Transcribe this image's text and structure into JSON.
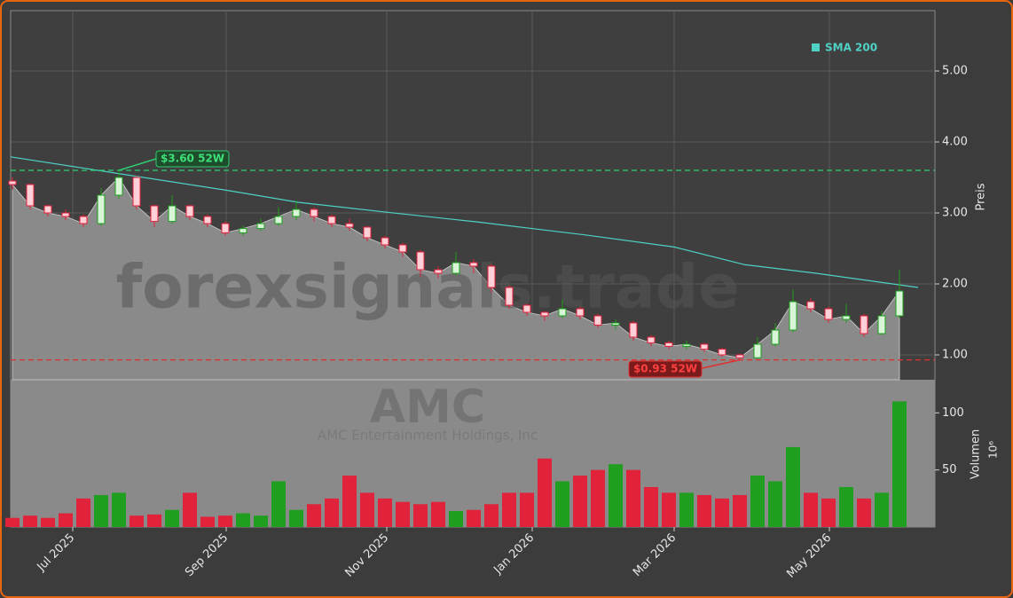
{
  "chart_data": [
    {
      "type": "candlestick",
      "title": "AMC",
      "subtitle": "AMC Entertainment Holdings, Inc",
      "watermark": "forexsignals.trade",
      "ylabel": "Preis",
      "x": [
        0,
        1,
        2,
        3,
        4,
        5,
        6,
        7,
        8,
        9,
        10,
        11,
        12,
        13,
        14,
        15,
        16,
        17,
        18,
        19,
        20,
        21,
        22,
        23,
        24,
        25,
        26,
        27,
        28,
        29,
        30,
        31,
        32,
        33,
        34,
        35,
        36,
        37,
        38,
        39,
        40,
        41,
        42,
        43,
        44,
        45,
        46,
        47,
        48,
        49,
        50
      ],
      "open": [
        3.45,
        3.4,
        3.1,
        3.0,
        2.95,
        2.85,
        3.25,
        3.5,
        3.1,
        2.88,
        3.1,
        2.95,
        2.85,
        2.72,
        2.78,
        2.85,
        2.95,
        3.05,
        2.95,
        2.85,
        2.8,
        2.65,
        2.55,
        2.45,
        2.2,
        2.15,
        2.3,
        2.25,
        1.95,
        1.7,
        1.6,
        1.55,
        1.65,
        1.55,
        1.42,
        1.45,
        1.25,
        1.17,
        1.12,
        1.15,
        1.08,
        1.0,
        0.96,
        1.15,
        1.35,
        1.75,
        1.65,
        1.5,
        1.55,
        1.3,
        1.55
      ],
      "high": [
        3.5,
        3.42,
        3.12,
        3.05,
        2.98,
        3.35,
        3.6,
        3.52,
        3.12,
        3.25,
        3.12,
        2.98,
        2.88,
        2.82,
        2.92,
        3.08,
        3.18,
        3.08,
        2.98,
        2.92,
        2.82,
        2.68,
        2.58,
        2.48,
        2.25,
        2.45,
        2.35,
        2.28,
        1.98,
        1.72,
        1.62,
        1.78,
        1.68,
        1.58,
        1.5,
        1.48,
        1.28,
        1.2,
        1.2,
        1.17,
        1.1,
        1.02,
        1.25,
        1.45,
        1.92,
        1.8,
        1.68,
        1.72,
        1.58,
        1.62,
        2.2
      ],
      "low": [
        3.33,
        3.05,
        2.95,
        2.9,
        2.8,
        2.82,
        3.2,
        3.05,
        2.8,
        2.85,
        2.9,
        2.8,
        2.68,
        2.68,
        2.75,
        2.82,
        2.9,
        2.88,
        2.8,
        2.75,
        2.6,
        2.5,
        2.38,
        2.1,
        2.08,
        2.12,
        2.15,
        1.88,
        1.65,
        1.55,
        1.48,
        1.52,
        1.5,
        1.38,
        1.36,
        1.2,
        1.12,
        1.08,
        1.08,
        1.04,
        0.97,
        0.93,
        0.95,
        1.12,
        1.32,
        1.6,
        1.45,
        1.45,
        1.25,
        1.28,
        1.52
      ],
      "close": [
        3.4,
        3.1,
        3.0,
        2.95,
        2.85,
        3.25,
        3.5,
        3.1,
        2.88,
        3.1,
        2.95,
        2.85,
        2.72,
        2.78,
        2.85,
        2.95,
        3.05,
        2.95,
        2.85,
        2.8,
        2.65,
        2.55,
        2.45,
        2.2,
        2.15,
        2.3,
        2.25,
        1.95,
        1.7,
        1.6,
        1.55,
        1.65,
        1.55,
        1.42,
        1.45,
        1.25,
        1.17,
        1.12,
        1.15,
        1.08,
        1.0,
        0.96,
        1.15,
        1.35,
        1.75,
        1.65,
        1.5,
        1.55,
        1.3,
        1.55,
        1.9
      ],
      "up_color": "#1f9e1f",
      "down_color": "#e0223a",
      "area_color": "#8a8a8a",
      "sma": {
        "name": "SMA 200",
        "color": "#4fd1c5",
        "x": [
          -0.1,
          12.05,
          16.1,
          21.1,
          26.3,
          32.3,
          37.3,
          41.3,
          45.3,
          51.05
        ],
        "values": [
          3.79,
          3.32,
          3.15,
          3.01,
          2.87,
          2.69,
          2.52,
          2.27,
          2.15,
          1.95
        ]
      },
      "legend": "upper right",
      "hlines": [
        {
          "value": 3.6,
          "label": "$3.60 52W",
          "color": "#2ecc71"
        },
        {
          "value": 0.93,
          "label": "$0.93 52W",
          "color": "#e0302e"
        }
      ],
      "xlim": [
        -0.1,
        52
      ],
      "xticks": [
        {
          "value": 3.4,
          "label": "Jul 2025"
        },
        {
          "value": 12.05,
          "label": "Sep 2025"
        },
        {
          "value": 21.1,
          "label": "Nov 2025"
        },
        {
          "value": 29.3,
          "label": "Jan 2026"
        },
        {
          "value": 37.3,
          "label": "Mar 2026"
        },
        {
          "value": 46.05,
          "label": "May 2026"
        }
      ],
      "ylim": [
        0.65,
        5.85
      ],
      "yticks": [
        {
          "value": 1,
          "label": "1.00"
        },
        {
          "value": 2,
          "label": "2.00"
        },
        {
          "value": 3,
          "label": "3.00"
        },
        {
          "value": 4,
          "label": "4.00"
        },
        {
          "value": 5,
          "label": "5.00"
        }
      ],
      "grid": true
    },
    {
      "type": "bar",
      "ylabel": "Volumen",
      "yunit": "10⁶",
      "x": [
        0,
        1,
        2,
        3,
        4,
        5,
        6,
        7,
        8,
        9,
        10,
        11,
        12,
        13,
        14,
        15,
        16,
        17,
        18,
        19,
        20,
        21,
        22,
        23,
        24,
        25,
        26,
        27,
        28,
        29,
        30,
        31,
        32,
        33,
        34,
        35,
        36,
        37,
        38,
        39,
        40,
        41,
        42,
        43,
        44,
        45,
        46,
        47,
        48,
        49,
        50
      ],
      "values": [
        8,
        10,
        8,
        12,
        25,
        28,
        30,
        10,
        11,
        15,
        30,
        9,
        10,
        12,
        10,
        40,
        15,
        20,
        25,
        45,
        30,
        25,
        22,
        20,
        22,
        14,
        15,
        20,
        30,
        30,
        60,
        40,
        45,
        50,
        55,
        50,
        35,
        30,
        30,
        28,
        25,
        28,
        45,
        40,
        70,
        30,
        25,
        35,
        25,
        30,
        110
      ],
      "ylim": [
        0,
        129
      ],
      "yticks": [
        50,
        100
      ]
    }
  ]
}
